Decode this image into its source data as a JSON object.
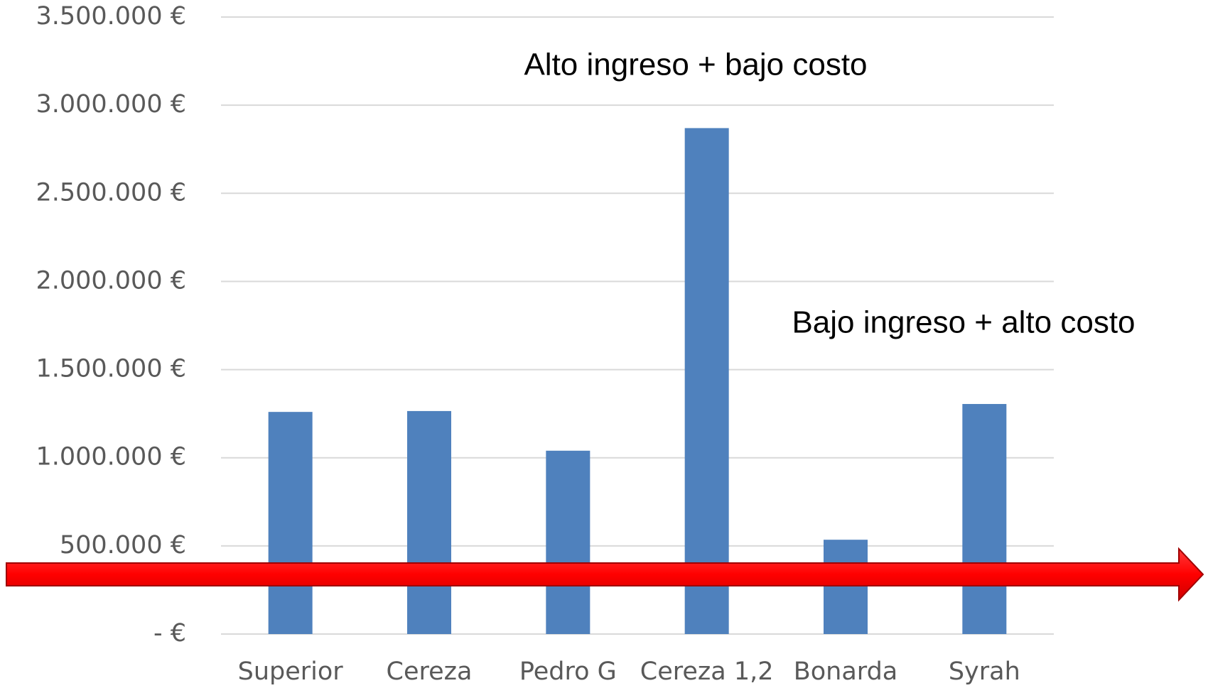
{
  "chart_data": {
    "type": "bar",
    "categories": [
      "Superior",
      "Cereza",
      "Pedro G",
      "Cereza 1,2",
      "Bonarda",
      "Syrah"
    ],
    "values": [
      1260000,
      1265000,
      1040000,
      2870000,
      535000,
      1305000
    ],
    "color": "#4f81bd",
    "ylim": [
      0,
      3500000
    ],
    "yticks": [
      {
        "value": 0,
        "label": "-   €"
      },
      {
        "value": 500000,
        "label": "500.000 €"
      },
      {
        "value": 1000000,
        "label": "1.000.000 €"
      },
      {
        "value": 1500000,
        "label": "1.500.000 €"
      },
      {
        "value": 2000000,
        "label": "2.000.000 €"
      },
      {
        "value": 2500000,
        "label": "2.500.000 €"
      },
      {
        "value": 3000000,
        "label": "3.000.000 €"
      },
      {
        "value": 3500000,
        "label": "3.500.000 €"
      }
    ],
    "grid": true,
    "annotations": [
      "Alto ingreso + bajo costo",
      "Bajo ingreso + alto costo"
    ]
  }
}
